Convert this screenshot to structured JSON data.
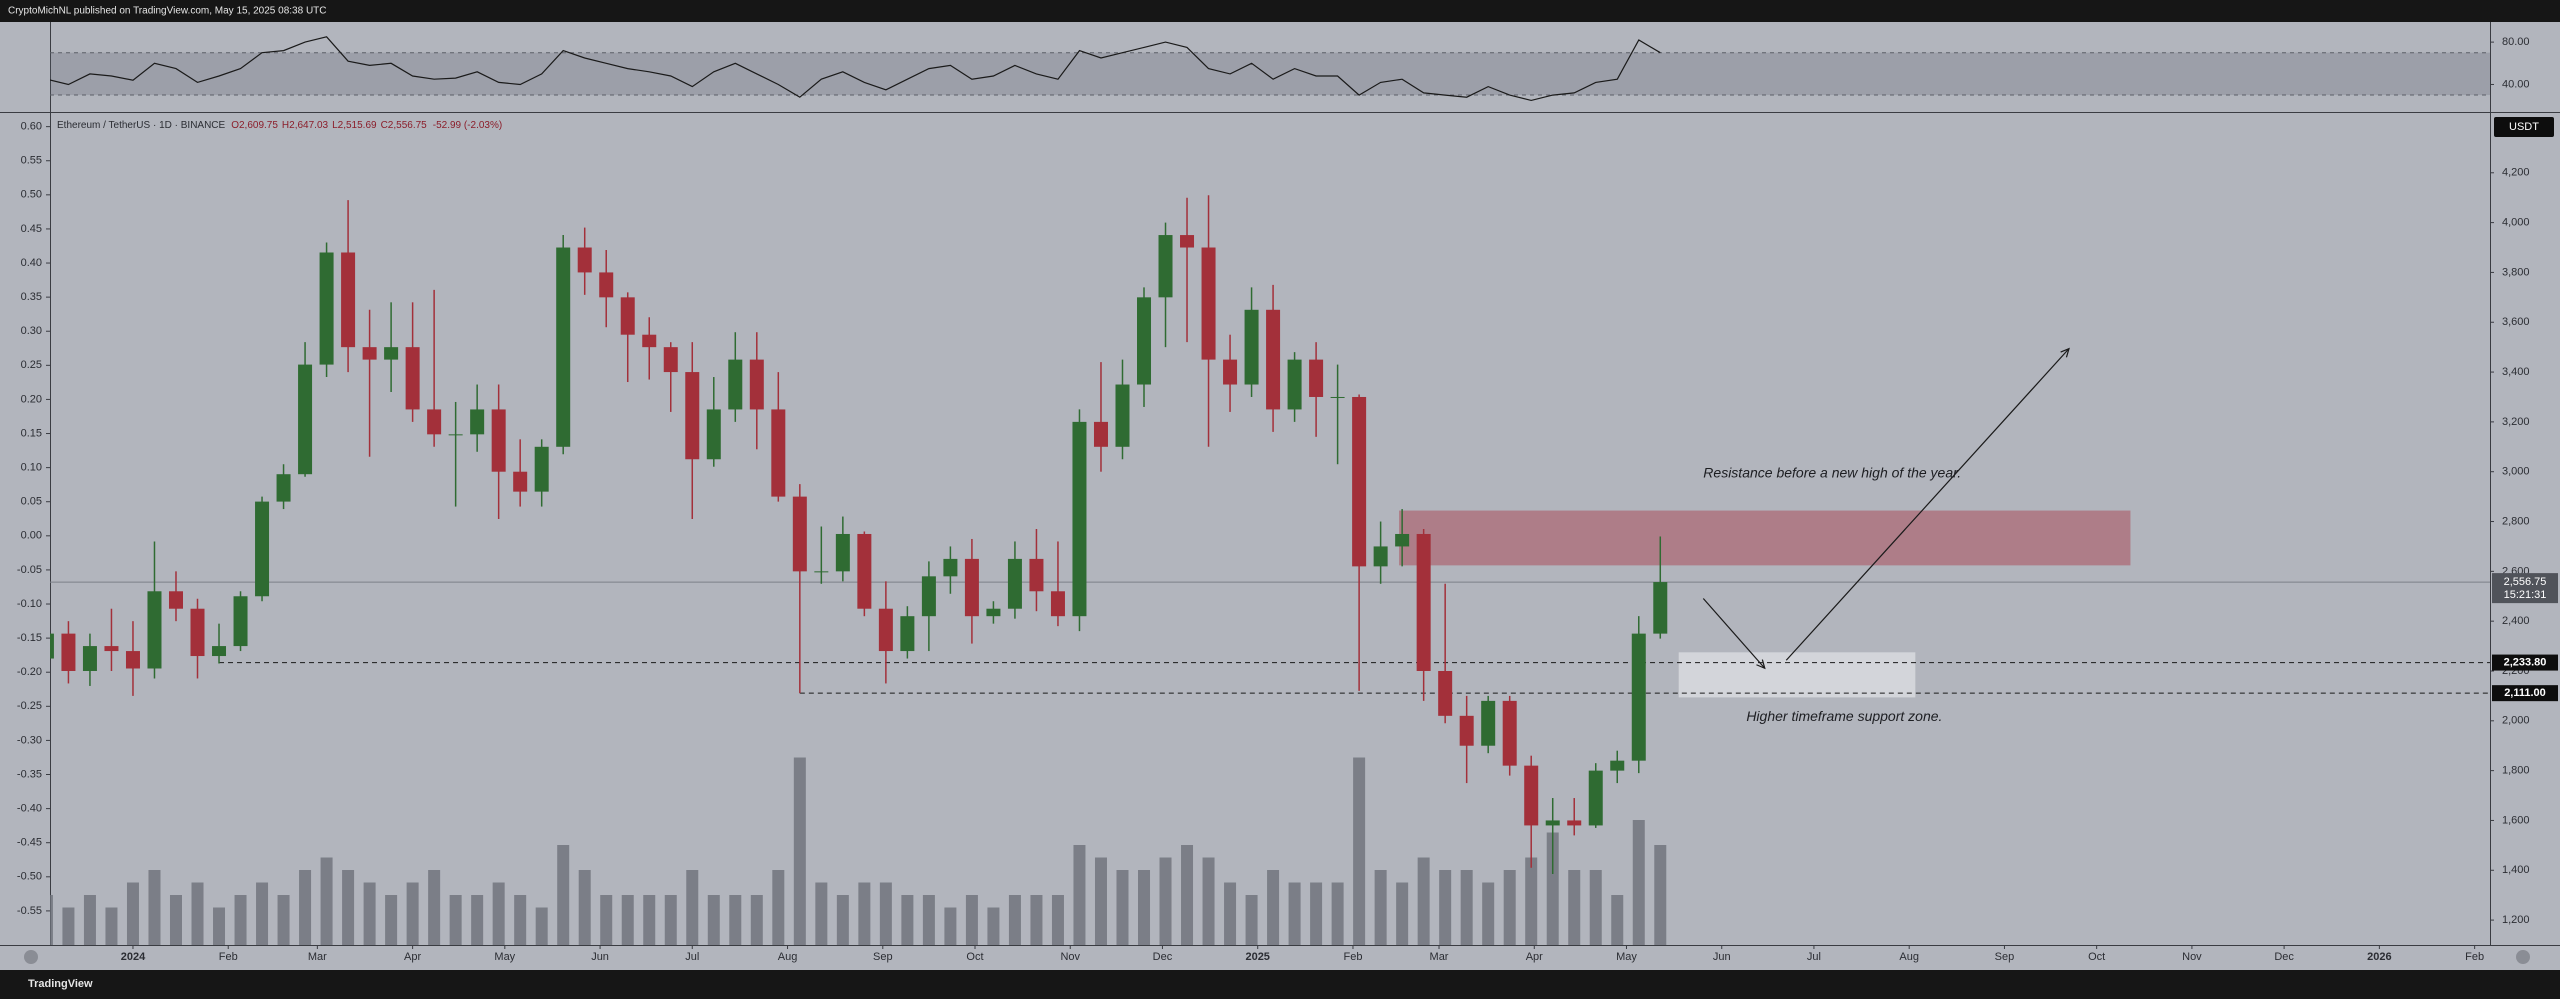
{
  "page_header": {
    "text": "CryptoMichNL published on TradingView.com, May 15, 2025 08:38 UTC"
  },
  "footer": {
    "brand": "TradingView"
  },
  "chart_data": {
    "type": "candlestick",
    "symbol": "Ethereum / TetherUS · 1D · BINANCE",
    "ohlc_legend": [
      "O2,609.75",
      "H2,647.03",
      "L2,515.69",
      "C2,556.75",
      "-52.99 (-2.03%)"
    ],
    "currency": "USDT",
    "up_color": "#2f6b32",
    "down_color": "#a3303a",
    "x": [
      -28,
      -21,
      -14,
      -7,
      0,
      7,
      14,
      21,
      28,
      35,
      42,
      49,
      56,
      63,
      70,
      77,
      84,
      91,
      98,
      105,
      112,
      119,
      126,
      133,
      140,
      147,
      154,
      161,
      168,
      175,
      182,
      189,
      196,
      203,
      210,
      217,
      224,
      231,
      238,
      245,
      252,
      259,
      266,
      273,
      280,
      287,
      294,
      301,
      308,
      315,
      322,
      329,
      336,
      343,
      350,
      357,
      364,
      371,
      378,
      385,
      392,
      399,
      406,
      413,
      420,
      427,
      434,
      441,
      448,
      455,
      462,
      469,
      476,
      483,
      490,
      497
    ],
    "open": [
      2250,
      2350,
      2200,
      2300,
      2280,
      2210,
      2520,
      2450,
      2260,
      2300,
      2500,
      2880,
      2990,
      3430,
      3880,
      3500,
      3450,
      3500,
      3250,
      3150,
      3150,
      3250,
      3000,
      2920,
      3100,
      3900,
      3800,
      3700,
      3550,
      3500,
      3400,
      3050,
      3250,
      3450,
      3250,
      2900,
      2600,
      2600,
      2750,
      2450,
      2280,
      2420,
      2580,
      2650,
      2420,
      2450,
      2650,
      2520,
      2420,
      3200,
      3100,
      3350,
      3700,
      3950,
      3900,
      3450,
      3350,
      3650,
      3250,
      3450,
      3300,
      3300,
      2620,
      2700,
      2750,
      2200,
      2020,
      1900,
      2080,
      1820,
      1580,
      1600,
      1580,
      1800,
      1840,
      2350
    ],
    "high": [
      2450,
      2400,
      2350,
      2450,
      2400,
      2720,
      2600,
      2490,
      2390,
      2520,
      2900,
      3030,
      3520,
      3920,
      4090,
      3650,
      3680,
      3680,
      3730,
      3280,
      3350,
      3350,
      3130,
      3130,
      3950,
      3980,
      3890,
      3720,
      3620,
      3520,
      3520,
      3380,
      3560,
      3560,
      3400,
      2950,
      2780,
      2820,
      2760,
      2560,
      2460,
      2640,
      2700,
      2730,
      2480,
      2720,
      2770,
      2720,
      3250,
      3440,
      3450,
      3740,
      4000,
      4100,
      4110,
      3550,
      3740,
      3750,
      3480,
      3520,
      3430,
      3310,
      2800,
      2850,
      2770,
      2550,
      2100,
      2100,
      2100,
      1860,
      1690,
      1690,
      1830,
      1880,
      2420,
      2740
    ],
    "low": [
      2150,
      2150,
      2140,
      2200,
      2100,
      2170,
      2400,
      2170,
      2230,
      2280,
      2480,
      2850,
      2980,
      3380,
      3400,
      3060,
      3320,
      3200,
      3100,
      2860,
      3080,
      2810,
      2860,
      2860,
      3070,
      3710,
      3580,
      3360,
      3370,
      3240,
      2810,
      3020,
      3200,
      3090,
      2880,
      2111,
      2550,
      2560,
      2420,
      2150,
      2250,
      2280,
      2510,
      2310,
      2390,
      2410,
      2440,
      2380,
      2360,
      3000,
      3050,
      3260,
      3500,
      3520,
      3100,
      3240,
      3300,
      3160,
      3200,
      3140,
      3030,
      2120,
      2550,
      2620,
      2080,
      1990,
      1750,
      1870,
      1780,
      1410,
      1385,
      1540,
      1570,
      1750,
      1790,
      2330
    ],
    "close": [
      2350,
      2200,
      2300,
      2280,
      2210,
      2520,
      2450,
      2260,
      2300,
      2500,
      2880,
      2990,
      3430,
      3880,
      3500,
      3450,
      3500,
      3250,
      3150,
      3150,
      3250,
      3000,
      2920,
      3100,
      3900,
      3800,
      3700,
      3550,
      3500,
      3400,
      3050,
      3250,
      3450,
      3250,
      2900,
      2600,
      2600,
      2750,
      2450,
      2280,
      2420,
      2580,
      2650,
      2420,
      2450,
      2650,
      2520,
      2420,
      3200,
      3100,
      3350,
      3700,
      3950,
      3900,
      3450,
      3350,
      3650,
      3250,
      3450,
      3300,
      3300,
      2620,
      2700,
      2750,
      2200,
      2020,
      1900,
      2080,
      1820,
      1580,
      1600,
      1580,
      1800,
      1840,
      2350,
      2557
    ],
    "volume": {
      "color": "#6d7079",
      "ylim": [
        0,
        20
      ],
      "values": [
        4,
        3,
        4,
        3,
        5,
        6,
        4,
        5,
        3,
        4,
        5,
        4,
        6,
        7,
        6,
        5,
        4,
        5,
        6,
        4,
        4,
        5,
        4,
        3,
        8,
        6,
        4,
        4,
        4,
        4,
        6,
        4,
        4,
        4,
        6,
        15,
        5,
        4,
        5,
        5,
        4,
        4,
        3,
        4,
        3,
        4,
        4,
        4,
        8,
        7,
        6,
        6,
        7,
        8,
        7,
        5,
        4,
        6,
        5,
        5,
        5,
        15,
        6,
        5,
        7,
        6,
        6,
        5,
        6,
        7,
        9,
        6,
        6,
        4,
        10,
        8
      ]
    },
    "rsi": {
      "color": "#1a1a1a",
      "ylim": [
        14,
        99
      ],
      "band": [
        30,
        70
      ],
      "yticks": [
        {
          "value": 80,
          "label": "80.00"
        },
        {
          "value": 40,
          "label": "40.00"
        }
      ],
      "values": [
        45,
        40,
        50,
        48,
        44,
        60,
        55,
        42,
        48,
        55,
        70,
        72,
        80,
        85,
        62,
        58,
        60,
        48,
        45,
        46,
        52,
        42,
        40,
        50,
        72,
        65,
        60,
        55,
        52,
        48,
        38,
        52,
        60,
        50,
        40,
        28,
        45,
        52,
        42,
        35,
        45,
        55,
        58,
        45,
        48,
        58,
        50,
        45,
        72,
        65,
        70,
        75,
        80,
        75,
        55,
        50,
        60,
        45,
        55,
        48,
        48,
        30,
        42,
        45,
        32,
        30,
        28,
        38,
        30,
        25,
        30,
        32,
        42,
        45,
        82,
        70
      ]
    },
    "xlim": [
      -27,
      767
    ],
    "xticks": [
      {
        "value": 0,
        "label": "2024"
      },
      {
        "value": 31,
        "label": "Feb"
      },
      {
        "value": 60,
        "label": "Mar"
      },
      {
        "value": 91,
        "label": "Apr"
      },
      {
        "value": 121,
        "label": "May"
      },
      {
        "value": 152,
        "label": "Jun"
      },
      {
        "value": 182,
        "label": "Jul"
      },
      {
        "value": 213,
        "label": "Aug"
      },
      {
        "value": 244,
        "label": "Sep"
      },
      {
        "value": 274,
        "label": "Oct"
      },
      {
        "value": 305,
        "label": "Nov"
      },
      {
        "value": 335,
        "label": "Dec"
      },
      {
        "value": 366,
        "label": "2025"
      },
      {
        "value": 397,
        "label": "Feb"
      },
      {
        "value": 425,
        "label": "Mar"
      },
      {
        "value": 456,
        "label": "Apr"
      },
      {
        "value": 486,
        "label": "May"
      },
      {
        "value": 517,
        "label": "Jun"
      },
      {
        "value": 547,
        "label": "Jul"
      },
      {
        "value": 578,
        "label": "Aug"
      },
      {
        "value": 609,
        "label": "Sep"
      },
      {
        "value": 639,
        "label": "Oct"
      },
      {
        "value": 670,
        "label": "Nov"
      },
      {
        "value": 700,
        "label": "Dec"
      },
      {
        "value": 731,
        "label": "2026"
      },
      {
        "value": 762,
        "label": "Feb"
      }
    ],
    "ylim": [
      1100,
      4440
    ],
    "yticks": [
      {
        "value": 1200,
        "label": "1,200"
      },
      {
        "value": 1400,
        "label": "1,400"
      },
      {
        "value": 1600,
        "label": "1,600"
      },
      {
        "value": 1800,
        "label": "1,800"
      },
      {
        "value": 2000,
        "label": "2,000"
      },
      {
        "value": 2200,
        "label": "2,200"
      },
      {
        "value": 2400,
        "label": "2,400"
      },
      {
        "value": 2600,
        "label": "2,600"
      },
      {
        "value": 2800,
        "label": "2,800"
      },
      {
        "value": 3000,
        "label": "3,000"
      },
      {
        "value": 3200,
        "label": "3,200"
      },
      {
        "value": 3400,
        "label": "3,400"
      },
      {
        "value": 3600,
        "label": "3,600"
      },
      {
        "value": 3800,
        "label": "3,800"
      },
      {
        "value": 4000,
        "label": "4,000"
      },
      {
        "value": 4200,
        "label": "4,200"
      }
    ],
    "left_ylim": [
      -0.6,
      0.62
    ],
    "left_yticks": [
      {
        "value": 0.6,
        "label": "0.60"
      },
      {
        "value": 0.55,
        "label": "0.55"
      },
      {
        "value": 0.5,
        "label": "0.50"
      },
      {
        "value": 0.45,
        "label": "0.45"
      },
      {
        "value": 0.4,
        "label": "0.40"
      },
      {
        "value": 0.35,
        "label": "0.35"
      },
      {
        "value": 0.3,
        "label": "0.30"
      },
      {
        "value": 0.25,
        "label": "0.25"
      },
      {
        "value": 0.2,
        "label": "0.20"
      },
      {
        "value": 0.15,
        "label": "0.15"
      },
      {
        "value": 0.1,
        "label": "0.10"
      },
      {
        "value": 0.05,
        "label": "0.05"
      },
      {
        "value": 0,
        "label": "0.00"
      },
      {
        "value": -0.05,
        "label": "-0.05"
      },
      {
        "value": -0.1,
        "label": "-0.10"
      },
      {
        "value": -0.15,
        "label": "-0.15"
      },
      {
        "value": -0.2,
        "label": "-0.20"
      },
      {
        "value": -0.25,
        "label": "-0.25"
      },
      {
        "value": -0.3,
        "label": "-0.30"
      },
      {
        "value": -0.35,
        "label": "-0.35"
      },
      {
        "value": -0.4,
        "label": "-0.40"
      },
      {
        "value": -0.45,
        "label": "-0.45"
      },
      {
        "value": -0.5,
        "label": "-0.50"
      },
      {
        "value": -0.55,
        "label": "-0.55"
      }
    ],
    "last_price": {
      "value": 2556.75,
      "label": "2,556.75",
      "countdown": "15:21:31"
    },
    "levels": [
      {
        "value": 2233.8,
        "label": "2,233.80",
        "from": 28
      },
      {
        "value": 2111,
        "label": "2,111.00",
        "from": 217
      }
    ],
    "zones": [
      {
        "top": 2844,
        "bottom": 2624,
        "from": 412,
        "to": 650,
        "color": "rgba(168,58,70,0.45)"
      },
      {
        "top": 2275,
        "bottom": 2094,
        "from": 503,
        "to": 580,
        "color": "rgba(238,238,242,0.55)"
      }
    ],
    "arrows": [
      {
        "from": [
          511,
          2491
        ],
        "to": [
          531,
          2211
        ]
      },
      {
        "from": [
          538,
          2243
        ],
        "to": [
          630,
          3494
        ]
      }
    ],
    "notes": [
      {
        "text": "Resistance before a new high of the year.",
        "at": [
          511,
          2992
        ]
      },
      {
        "text": "Higher timeframe support zone.",
        "at": [
          525,
          2014
        ]
      }
    ]
  }
}
